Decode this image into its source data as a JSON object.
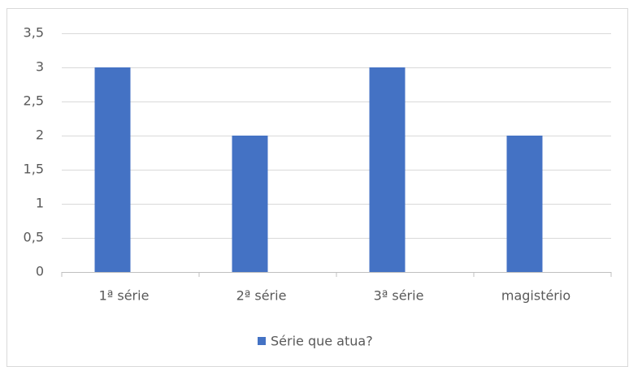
{
  "chart_data": {
    "type": "bar",
    "categories": [
      "1ª série",
      "2ª série",
      "3ª série",
      "magistério"
    ],
    "series": [
      {
        "name": "Série que atua?",
        "color": "#4472c4",
        "values": [
          3,
          2,
          3,
          2
        ]
      }
    ],
    "ylim": [
      0,
      3.5
    ],
    "yticks": [
      0,
      {
        "value": 0.5,
        "label": "0,5"
      },
      1,
      {
        "value": 1.5,
        "label": "1,5"
      },
      2,
      {
        "value": 2.5,
        "label": "2,5"
      },
      3,
      {
        "value": 3.5,
        "label": "3,5"
      }
    ],
    "grid": true,
    "legend": "bottom"
  }
}
